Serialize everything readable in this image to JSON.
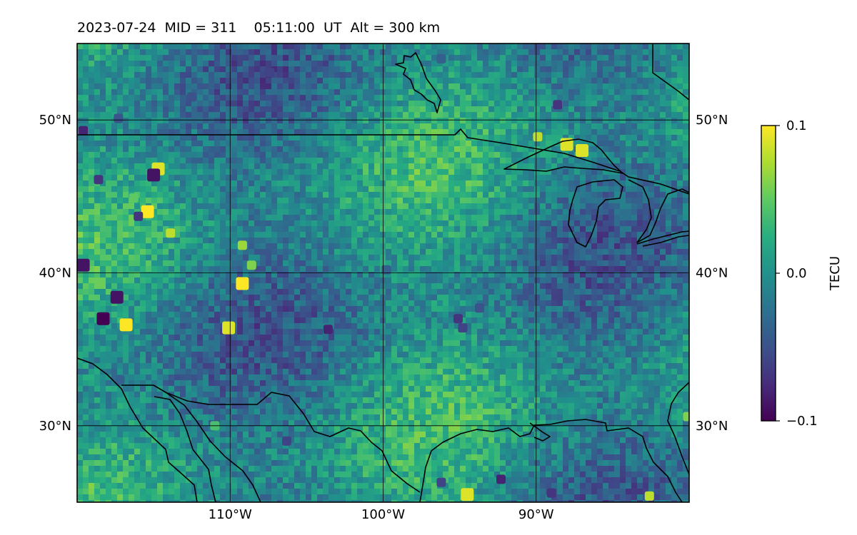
{
  "title": "2023-07-24  MID = 311    05:11:00  UT  Alt = 300 km",
  "chart_data": {
    "type": "heatmap",
    "projection": "plate-carree",
    "lon_range": [
      -120,
      -80
    ],
    "lat_range": [
      25,
      55
    ],
    "x_ticks": [
      {
        "value": -110,
        "label": "110°W"
      },
      {
        "value": -100,
        "label": "100°W"
      },
      {
        "value": -90,
        "label": "90°W"
      }
    ],
    "y_ticks": [
      {
        "value": 30,
        "label": "30°N"
      },
      {
        "value": 40,
        "label": "40°N"
      },
      {
        "value": 50,
        "label": "50°N"
      }
    ],
    "grid": true,
    "colorbar": {
      "label": "TECU",
      "min": -0.1,
      "max": 0.1,
      "ticks": [
        {
          "value": 0.1,
          "label": "0.1"
        },
        {
          "value": 0.0,
          "label": "0.0"
        },
        {
          "value": -0.1,
          "label": "−0.1"
        }
      ],
      "colormap": "viridis"
    },
    "anomalies": [
      {
        "lon": -115.4,
        "lat": 44.0,
        "value": 0.1
      },
      {
        "lon": -114.7,
        "lat": 46.8,
        "value": 0.09
      },
      {
        "lon": -116.3,
        "lat": 44.9,
        "value": 0.05
      },
      {
        "lon": -113.9,
        "lat": 42.6,
        "value": 0.08
      },
      {
        "lon": -110.1,
        "lat": 36.4,
        "value": 0.09
      },
      {
        "lon": -109.2,
        "lat": 41.8,
        "value": 0.07
      },
      {
        "lon": -109.2,
        "lat": 39.3,
        "value": 0.1
      },
      {
        "lon": -108.6,
        "lat": 40.5,
        "value": 0.06
      },
      {
        "lon": -116.8,
        "lat": 36.6,
        "value": 0.1
      },
      {
        "lon": -89.9,
        "lat": 48.9,
        "value": 0.08
      },
      {
        "lon": -88.0,
        "lat": 48.4,
        "value": 0.09
      },
      {
        "lon": -87.0,
        "lat": 48.0,
        "value": 0.09
      },
      {
        "lon": -94.5,
        "lat": 25.5,
        "value": 0.09
      },
      {
        "lon": -80.1,
        "lat": 30.6,
        "value": 0.06
      },
      {
        "lon": -111.0,
        "lat": 30.0,
        "value": 0.04
      },
      {
        "lon": -82.6,
        "lat": 25.4,
        "value": 0.08
      },
      {
        "lon": -118.3,
        "lat": 37.0,
        "value": -0.1
      },
      {
        "lon": -117.4,
        "lat": 38.4,
        "value": -0.09
      },
      {
        "lon": -115.0,
        "lat": 46.4,
        "value": -0.09
      },
      {
        "lon": -116.0,
        "lat": 43.7,
        "value": -0.07
      },
      {
        "lon": -119.6,
        "lat": 40.5,
        "value": -0.09
      },
      {
        "lon": -119.6,
        "lat": 49.3,
        "value": -0.08
      },
      {
        "lon": -117.3,
        "lat": 50.1,
        "value": -0.05
      },
      {
        "lon": -118.6,
        "lat": 46.1,
        "value": -0.07
      },
      {
        "lon": -103.6,
        "lat": 36.3,
        "value": -0.08
      },
      {
        "lon": -95.1,
        "lat": 37.0,
        "value": -0.07
      },
      {
        "lon": -94.8,
        "lat": 36.4,
        "value": -0.06
      },
      {
        "lon": -93.7,
        "lat": 37.7,
        "value": -0.05
      },
      {
        "lon": -88.6,
        "lat": 51.0,
        "value": -0.07
      },
      {
        "lon": -107.4,
        "lat": 53.1,
        "value": -0.06
      },
      {
        "lon": -112.5,
        "lat": 51.5,
        "value": -0.05
      },
      {
        "lon": -96.2,
        "lat": 54.0,
        "value": -0.04
      },
      {
        "lon": -106.3,
        "lat": 29.0,
        "value": -0.06
      },
      {
        "lon": -96.2,
        "lat": 26.3,
        "value": -0.06
      },
      {
        "lon": -92.3,
        "lat": 26.5,
        "value": -0.08
      },
      {
        "lon": -89.0,
        "lat": 25.6,
        "value": -0.07
      },
      {
        "lon": -99.8,
        "lat": 40.2,
        "value": -0.04
      },
      {
        "lon": -117.2,
        "lat": 33.0,
        "value": -0.04
      }
    ]
  },
  "colors": {
    "background_field": "#2e7d8c",
    "coastline": "#000000",
    "gridline": "#000000"
  }
}
